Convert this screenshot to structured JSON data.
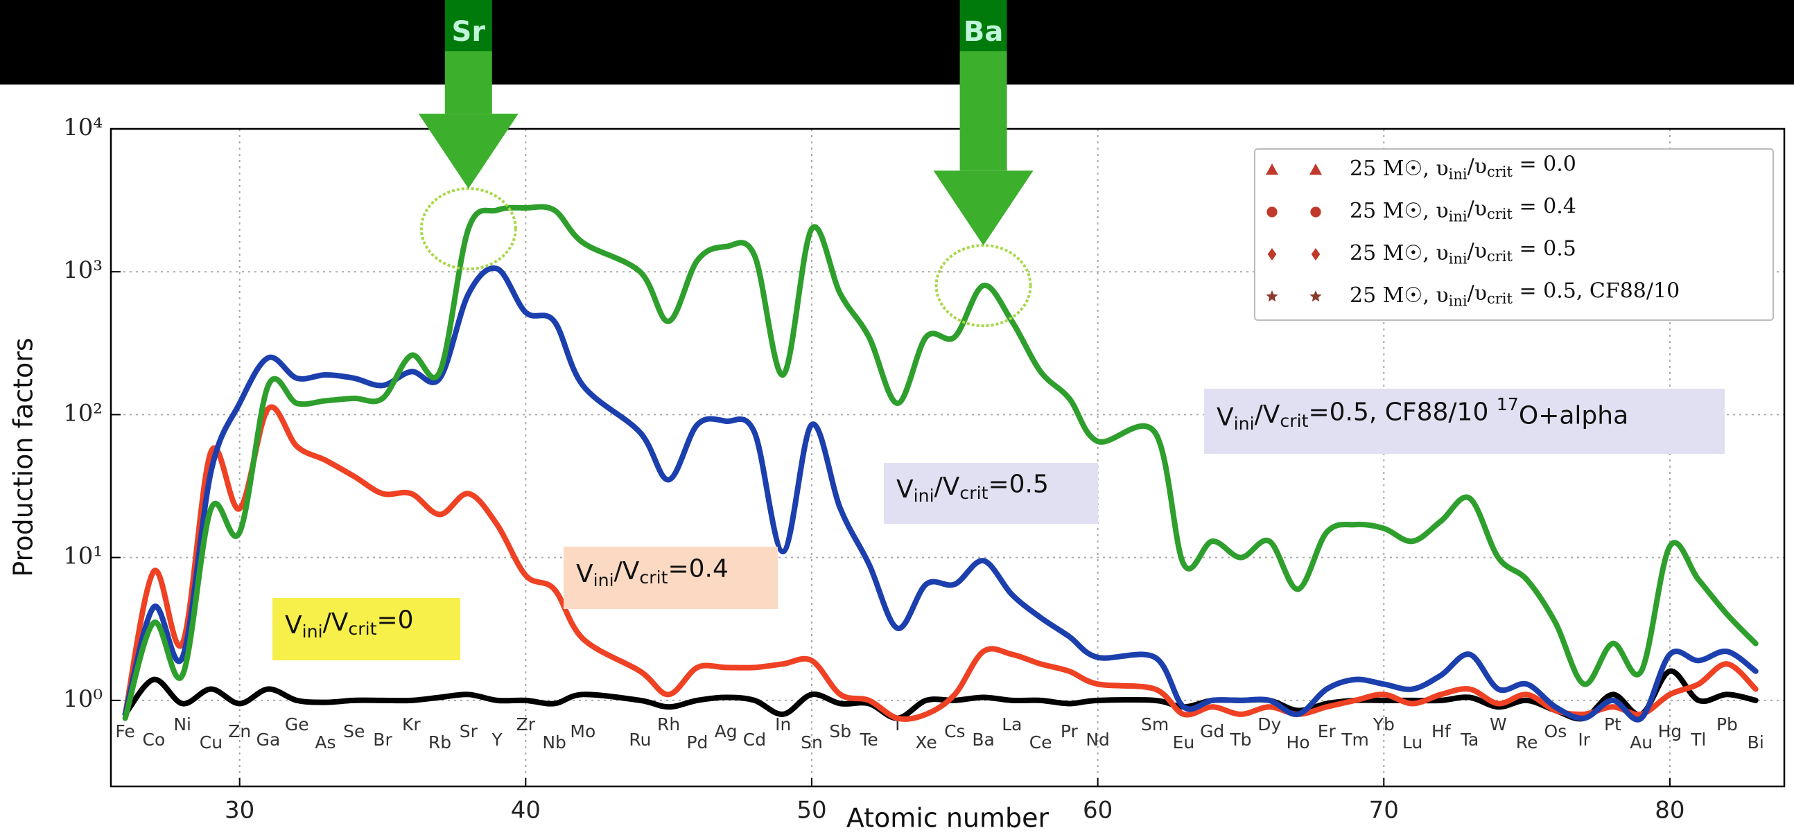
{
  "chart_data": {
    "type": "line",
    "x_label": "Atomic number",
    "y_label": "Production factors",
    "log_y": true,
    "grid": true,
    "legend": "upper right",
    "xlim": [
      25.5,
      84
    ],
    "ylim": [
      0.25,
      10000
    ],
    "xticks": [
      30,
      40,
      50,
      60,
      70,
      80
    ],
    "yticks": [
      {
        "value": 1,
        "label": "10⁰"
      },
      {
        "value": 10,
        "label": "10¹"
      },
      {
        "value": 100,
        "label": "10²"
      },
      {
        "value": 1000,
        "label": "10³"
      },
      {
        "value": 10000,
        "label": "10⁴"
      }
    ],
    "x": [
      26,
      27,
      28,
      29,
      30,
      31,
      32,
      33,
      34,
      35,
      36,
      37,
      38,
      39,
      40,
      41,
      42,
      44,
      45,
      46,
      47,
      48,
      49,
      50,
      51,
      52,
      53,
      54,
      55,
      56,
      57,
      58,
      59,
      60,
      62,
      63,
      64,
      65,
      66,
      67,
      68,
      69,
      70,
      71,
      72,
      73,
      74,
      75,
      76,
      77,
      78,
      79,
      80,
      81,
      82,
      83
    ],
    "element_symbols": [
      "Fe",
      "Co",
      "Ni",
      "Cu",
      "Zn",
      "Ga",
      "Ge",
      "As",
      "Se",
      "Br",
      "Kr",
      "Rb",
      "Sr",
      "Y",
      "Zr",
      "Nb",
      "Mo",
      "Ru",
      "Rh",
      "Pd",
      "Ag",
      "Cd",
      "In",
      "Sn",
      "Sb",
      "Te",
      "I",
      "Xe",
      "Cs",
      "Ba",
      "La",
      "Ce",
      "Pr",
      "Nd",
      "Sm",
      "Eu",
      "Gd",
      "Tb",
      "Dy",
      "Ho",
      "Er",
      "Tm",
      "Yb",
      "Lu",
      "Hf",
      "Ta",
      "W",
      "Re",
      "Os",
      "Ir",
      "Pt",
      "Au",
      "Hg",
      "Tl",
      "Pb",
      "Bi"
    ],
    "series": [
      {
        "name": "25 M☉, υini/υcrit = 0.0",
        "color": "#000000",
        "marker": "triangle",
        "marker_color": "#c0392b",
        "values": [
          0.8,
          1.4,
          0.95,
          1.2,
          0.95,
          1.2,
          1.0,
          0.97,
          1.0,
          1.0,
          1.0,
          1.05,
          1.1,
          1.0,
          1.0,
          0.95,
          1.1,
          1.0,
          0.9,
          1.0,
          1.05,
          1.0,
          0.8,
          1.1,
          0.95,
          0.95,
          0.75,
          1.0,
          1.0,
          1.05,
          1.0,
          1.0,
          0.95,
          1.0,
          1.0,
          0.9,
          1.0,
          1.0,
          1.0,
          0.85,
          0.95,
          1.0,
          1.0,
          1.0,
          1.0,
          1.05,
          0.9,
          1.0,
          0.85,
          0.75,
          1.1,
          0.8,
          1.6,
          1.0,
          1.1,
          1.0
        ]
      },
      {
        "name": "25 M☉, υini/υcrit = 0.4",
        "color": "#ef4123",
        "marker": "circle",
        "marker_color": "#c0392b",
        "values": [
          0.8,
          8,
          2.5,
          55,
          22,
          110,
          60,
          48,
          37,
          28,
          28,
          20,
          28,
          17,
          7.5,
          6,
          2.7,
          1.6,
          1.1,
          1.7,
          1.7,
          1.7,
          1.8,
          1.9,
          1.1,
          1.0,
          0.75,
          0.8,
          1.1,
          2.2,
          2.1,
          1.8,
          1.6,
          1.3,
          1.2,
          0.8,
          0.9,
          0.8,
          0.9,
          0.8,
          0.9,
          1.0,
          1.1,
          0.95,
          1.1,
          1.2,
          0.95,
          1.1,
          0.85,
          0.8,
          0.9,
          0.8,
          1.1,
          1.3,
          1.8,
          1.2
        ]
      },
      {
        "name": "25 M☉, υini/υcrit = 0.5",
        "color": "#1c3fae",
        "marker": "diamond",
        "marker_color": "#c0392b",
        "values": [
          0.8,
          4.5,
          2.0,
          40,
          120,
          250,
          180,
          190,
          180,
          160,
          200,
          180,
          700,
          1050,
          520,
          450,
          160,
          75,
          35,
          85,
          90,
          75,
          11,
          85,
          22,
          9,
          3.2,
          6.5,
          6.5,
          9.5,
          5.5,
          3.8,
          2.8,
          2.0,
          2.0,
          0.9,
          1.0,
          1.0,
          1.0,
          0.8,
          1.2,
          1.4,
          1.3,
          1.2,
          1.5,
          2.1,
          1.2,
          1.3,
          0.9,
          0.75,
          1.0,
          0.75,
          2.1,
          1.9,
          2.2,
          1.6
        ]
      },
      {
        "name": "25 M☉, υini/υcrit = 0.5, CF88/10",
        "color": "#2e9f2c",
        "marker": "star",
        "marker_color": "#8b3a2b",
        "values": [
          0.75,
          3.5,
          1.5,
          22,
          15,
          160,
          120,
          125,
          130,
          130,
          260,
          200,
          2000,
          2700,
          2800,
          2700,
          1600,
          1000,
          450,
          1200,
          1500,
          1300,
          190,
          2000,
          700,
          350,
          120,
          350,
          350,
          800,
          450,
          200,
          130,
          65,
          75,
          9,
          13,
          10,
          13,
          6,
          15,
          17,
          16,
          13,
          18,
          26,
          10,
          7,
          3.5,
          1.3,
          2.5,
          1.6,
          12,
          7,
          4,
          2.5
        ]
      }
    ],
    "annotations": [
      {
        "text": "Vini/Vcrit=0",
        "color": "#f7f04a"
      },
      {
        "text": "Vini/Vcrit=0.4",
        "color": "#fbd9c2"
      },
      {
        "text": "Vini/Vcrit=0.5",
        "color": "#e0e0f2"
      },
      {
        "text": "Vini/Vcrit=0.5, CF88/10 17O+alpha",
        "color": "#e0e0f2"
      }
    ],
    "arrows": [
      {
        "label": "Sr"
      },
      {
        "label": "Ba"
      }
    ]
  }
}
